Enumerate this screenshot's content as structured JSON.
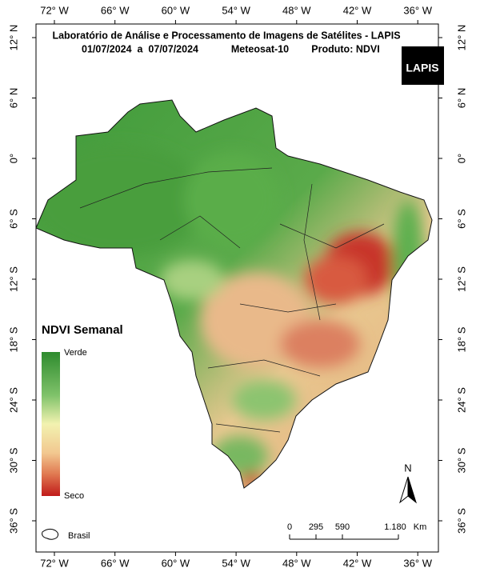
{
  "header": {
    "title": "Laboratório de Análise e Processamento de Imagens de Satélites - LAPIS",
    "dates": "01/07/2024  a  07/07/2024",
    "satellite": "Meteosat-10",
    "product": "Produto: NDVI"
  },
  "logo": "LAPIS",
  "longitude_labels": [
    "72° W",
    "66° W",
    "60° W",
    "54° W",
    "48° W",
    "42° W",
    "36° W"
  ],
  "latitude_labels": [
    "12° N",
    "6° N",
    "0°",
    "6° S",
    "12° S",
    "18° S",
    "24° S",
    "30° S",
    "36° S"
  ],
  "legend": {
    "title": "NDVI Semanal",
    "top": "Verde",
    "bottom": "Seco"
  },
  "north": "N",
  "scale_bar": {
    "labels": [
      "0",
      "295",
      "590",
      "1.180"
    ],
    "unit": "Km"
  },
  "inset": "Brasil"
}
